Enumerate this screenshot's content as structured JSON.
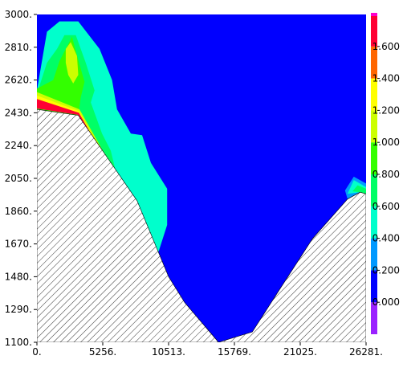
{
  "chart_data": {
    "type": "heatmap",
    "subtype": "filled-contour cross-section",
    "title": "",
    "xlabel": "",
    "ylabel": "",
    "xlim": [
      0,
      26281
    ],
    "ylim": [
      1100,
      3000
    ],
    "x_ticks": [
      {
        "value": 0,
        "label": "0."
      },
      {
        "value": 5256,
        "label": "5256."
      },
      {
        "value": 10513,
        "label": "10513."
      },
      {
        "value": 15769,
        "label": "15769."
      },
      {
        "value": 21025,
        "label": "21025."
      },
      {
        "value": 26281,
        "label": "26281."
      }
    ],
    "y_ticks": [
      {
        "value": 3000,
        "label": "3000."
      },
      {
        "value": 2810,
        "label": "2810."
      },
      {
        "value": 2620,
        "label": "2620."
      },
      {
        "value": 2430,
        "label": "2430."
      },
      {
        "value": 2240,
        "label": "2240."
      },
      {
        "value": 2050,
        "label": "2050."
      },
      {
        "value": 1860,
        "label": "1860."
      },
      {
        "value": 1670,
        "label": "1670."
      },
      {
        "value": 1480,
        "label": "1480."
      },
      {
        "value": 1290,
        "label": "1290."
      },
      {
        "value": 1100,
        "label": "1100."
      }
    ],
    "colorbar": {
      "range": [
        -0.2,
        1.8
      ],
      "bands": [
        {
          "from": -0.2,
          "to": 0.0,
          "color": "#9a22ff"
        },
        {
          "from": 0.0,
          "to": 0.2,
          "color": "#0000ff"
        },
        {
          "from": 0.2,
          "to": 0.4,
          "color": "#0099ff"
        },
        {
          "from": 0.4,
          "to": 0.6,
          "color": "#00ffcc"
        },
        {
          "from": 0.6,
          "to": 0.8,
          "color": "#00ff66"
        },
        {
          "from": 0.8,
          "to": 1.0,
          "color": "#33ff00"
        },
        {
          "from": 1.0,
          "to": 1.2,
          "color": "#ccff00"
        },
        {
          "from": 1.2,
          "to": 1.4,
          "color": "#ffff00"
        },
        {
          "from": 1.4,
          "to": 1.6,
          "color": "#ff6600"
        },
        {
          "from": 1.6,
          "to": 1.8,
          "color": "#ff0033"
        }
      ],
      "top_color": "#ff00cc",
      "labels": [
        "0.000",
        "0.200",
        "0.400",
        "0.600",
        "0.800",
        "1.000",
        "1.200",
        "1.400",
        "1.600"
      ]
    },
    "terrain": {
      "fill": "hatched",
      "points": [
        [
          0,
          2450
        ],
        [
          3300,
          2415
        ],
        [
          8000,
          1920
        ],
        [
          10513,
          1480
        ],
        [
          11800,
          1330
        ],
        [
          14500,
          1100
        ],
        [
          17200,
          1160
        ],
        [
          19500,
          1420
        ],
        [
          22000,
          1700
        ],
        [
          24800,
          1930
        ],
        [
          25800,
          1970
        ],
        [
          26281,
          1960
        ]
      ]
    },
    "regions": [
      {
        "value": 0.5,
        "points": [
          [
            0,
            2560
          ],
          [
            800,
            2900
          ],
          [
            1800,
            2960
          ],
          [
            3300,
            2960
          ],
          [
            5000,
            2800
          ],
          [
            6000,
            2620
          ],
          [
            6400,
            2450
          ],
          [
            7500,
            2310
          ],
          [
            8400,
            2300
          ],
          [
            9100,
            2140
          ],
          [
            10400,
            1990
          ],
          [
            10400,
            1780
          ],
          [
            9600,
            1600
          ],
          [
            10513,
            1480
          ],
          [
            8000,
            1920
          ],
          [
            3300,
            2415
          ],
          [
            0,
            2450
          ]
        ]
      },
      {
        "value": 0.3,
        "points": [
          [
            24600,
            1980
          ],
          [
            25300,
            2060
          ],
          [
            26281,
            2020
          ],
          [
            26281,
            1960
          ],
          [
            25800,
            1970
          ],
          [
            24800,
            1930
          ]
        ]
      },
      {
        "value": 0.5,
        "points": [
          [
            0,
            2540
          ],
          [
            1000,
            2860
          ],
          [
            1800,
            2920
          ],
          [
            3000,
            2910
          ],
          [
            4500,
            2770
          ],
          [
            5400,
            2640
          ],
          [
            5600,
            2510
          ],
          [
            5900,
            2400
          ],
          [
            6300,
            2310
          ],
          [
            7300,
            2250
          ],
          [
            8200,
            2180
          ],
          [
            8300,
            2020
          ],
          [
            9400,
            1900
          ],
          [
            9500,
            1700
          ],
          [
            8600,
            1760
          ],
          [
            3300,
            2415
          ],
          [
            0,
            2450
          ]
        ]
      },
      {
        "value": 0.5,
        "points": [
          [
            24800,
            1960
          ],
          [
            25300,
            2040
          ],
          [
            26281,
            2000
          ],
          [
            26281,
            1960
          ],
          [
            25800,
            1970
          ]
        ]
      },
      {
        "value": 0.7,
        "points": [
          [
            0,
            2540
          ],
          [
            800,
            2720
          ],
          [
            1600,
            2800
          ],
          [
            2200,
            2880
          ],
          [
            3100,
            2880
          ],
          [
            3900,
            2720
          ],
          [
            4600,
            2560
          ],
          [
            4300,
            2490
          ],
          [
            5200,
            2310
          ],
          [
            5900,
            2210
          ],
          [
            6400,
            2060
          ],
          [
            7000,
            1950
          ],
          [
            6800,
            1880
          ],
          [
            6400,
            1800
          ],
          [
            3300,
            2415
          ],
          [
            0,
            2450
          ]
        ]
      },
      {
        "value": 0.7,
        "points": [
          [
            25200,
            1975
          ],
          [
            25600,
            2010
          ],
          [
            26281,
            1990
          ],
          [
            26281,
            1960
          ],
          [
            25800,
            1970
          ]
        ]
      },
      {
        "value": 0.9,
        "points": [
          [
            0,
            2570
          ],
          [
            1300,
            2620
          ],
          [
            1800,
            2730
          ],
          [
            2800,
            2870
          ],
          [
            3400,
            2710
          ],
          [
            3800,
            2610
          ],
          [
            3500,
            2520
          ],
          [
            3300,
            2415
          ],
          [
            0,
            2450
          ]
        ]
      },
      {
        "value": 1.1,
        "points": [
          [
            2300,
            2800
          ],
          [
            2700,
            2840
          ],
          [
            3200,
            2760
          ],
          [
            3300,
            2650
          ],
          [
            2900,
            2600
          ],
          [
            2500,
            2650
          ],
          [
            2300,
            2720
          ]
        ]
      },
      {
        "value": 1.1,
        "points": [
          [
            0,
            2550
          ],
          [
            3400,
            2450
          ],
          [
            6900,
            2000
          ],
          [
            6700,
            1990
          ],
          [
            3300,
            2420
          ],
          [
            0,
            2460
          ]
        ]
      },
      {
        "value": 1.3,
        "points": [
          [
            0,
            2530
          ],
          [
            3350,
            2440
          ],
          [
            6700,
            2000
          ],
          [
            6600,
            1990
          ],
          [
            3300,
            2420
          ],
          [
            0,
            2460
          ]
        ]
      },
      {
        "value": 1.7,
        "points": [
          [
            0,
            2510
          ],
          [
            3350,
            2430
          ],
          [
            7000,
            1970
          ],
          [
            6950,
            1960
          ],
          [
            3300,
            2418
          ],
          [
            0,
            2455
          ]
        ]
      }
    ]
  }
}
